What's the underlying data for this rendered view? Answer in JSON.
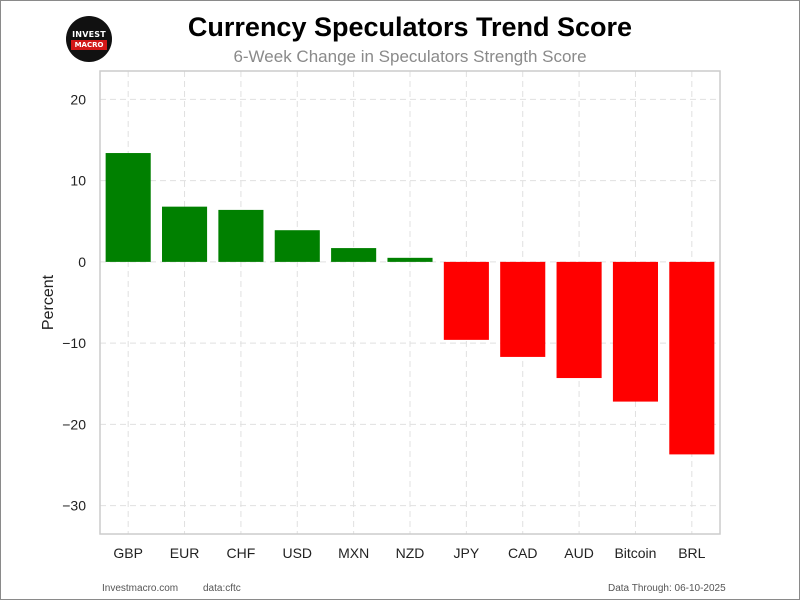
{
  "logo": {
    "line1": "INVEST",
    "line2": "MACRO"
  },
  "colors": {
    "positive": "#008000",
    "negative": "#ff0000",
    "grid": "#e0e0e0",
    "axis": "#cccccc"
  },
  "footer": {
    "site": "Investmacro.com",
    "source": "data:cftc",
    "data_through": "Data Through: 06-10-2025"
  },
  "chart_data": {
    "type": "bar",
    "title": "Currency Speculators Trend Score",
    "subtitle": "6-Week Change in Speculators Strength Score",
    "xlabel": "",
    "ylabel": "Percent",
    "categories": [
      "GBP",
      "EUR",
      "CHF",
      "USD",
      "MXN",
      "NZD",
      "JPY",
      "CAD",
      "AUD",
      "Bitcoin",
      "BRL"
    ],
    "values": [
      13.4,
      6.8,
      6.4,
      3.9,
      1.7,
      0.5,
      -9.6,
      -11.7,
      -14.3,
      -17.2,
      -23.7
    ],
    "yticks": [
      20,
      10,
      0,
      -10,
      -20,
      -30
    ],
    "ytick_labels": [
      "20",
      "10",
      "0",
      "−10",
      "−20",
      "−30"
    ],
    "ylim": [
      -33.5,
      23.5
    ],
    "grid": true
  }
}
